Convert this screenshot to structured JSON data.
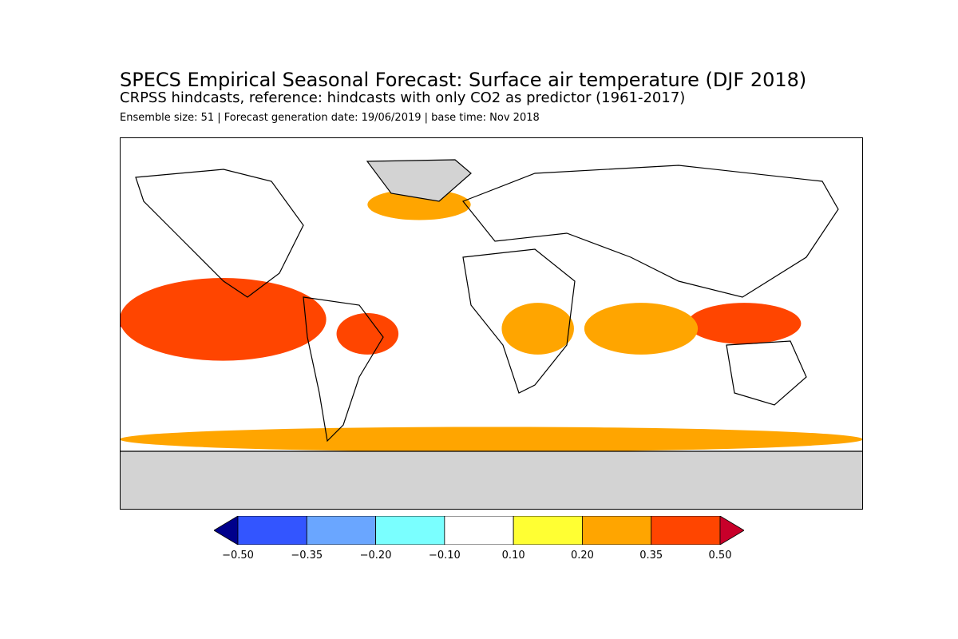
{
  "header": {
    "title": "SPECS Empirical Seasonal Forecast: Surface air temperature (DJF 2018)",
    "subtitle": "CRPSS hindcasts, reference: hindcasts with only CO2 as predictor (1961-2017)",
    "meta": "Ensemble size: 51 | Forecast generation date: 19/06/2019 | base time: Nov 2018"
  },
  "colors": {
    "land_mask": "#d3d3d3",
    "ocean_default": "#ffffff",
    "coastline": "#000000",
    "frame": "#000000"
  },
  "map": {
    "projection": "global-latlon",
    "lon_range": [
      -180,
      180
    ],
    "lat_range": [
      -90,
      90
    ],
    "masked_region": "polar land (Greenland interior, Antarctica)",
    "skill_regions": [
      {
        "name": "equatorial-pacific",
        "lon": [
          -180,
          -90
        ],
        "lat": [
          -10,
          10
        ],
        "class": 8
      },
      {
        "name": "tropical-pacific-band",
        "lon": [
          -180,
          -80
        ],
        "lat": [
          -18,
          22
        ],
        "class": 7
      },
      {
        "name": "north-atlantic",
        "lon": [
          -60,
          -10
        ],
        "lat": [
          50,
          65
        ],
        "class": 6
      },
      {
        "name": "maritime-continent",
        "lon": [
          95,
          150
        ],
        "lat": [
          -10,
          10
        ],
        "class": 7
      },
      {
        "name": "indian-ocean",
        "lon": [
          45,
          100
        ],
        "lat": [
          -15,
          10
        ],
        "class": 6
      },
      {
        "name": "amazon",
        "lon": [
          -75,
          -45
        ],
        "lat": [
          -15,
          5
        ],
        "class": 7
      },
      {
        "name": "southern-ocean-band",
        "lon": [
          -180,
          180
        ],
        "lat": [
          -62,
          -50
        ],
        "class": 6
      },
      {
        "name": "west-central-africa",
        "lon": [
          5,
          40
        ],
        "lat": [
          -15,
          10
        ],
        "class": 6
      }
    ]
  },
  "legend": {
    "type": "colorbar",
    "extend": "both",
    "bins": [
      {
        "from": null,
        "to": -0.5,
        "color": "#00008b"
      },
      {
        "from": -0.5,
        "to": -0.35,
        "color": "#3355ff"
      },
      {
        "from": -0.35,
        "to": -0.2,
        "color": "#6aa6ff"
      },
      {
        "from": -0.2,
        "to": -0.1,
        "color": "#7affff"
      },
      {
        "from": -0.1,
        "to": 0.1,
        "color": "#ffffff"
      },
      {
        "from": 0.1,
        "to": 0.2,
        "color": "#ffff33"
      },
      {
        "from": 0.2,
        "to": 0.35,
        "color": "#ffa500"
      },
      {
        "from": 0.35,
        "to": 0.5,
        "color": "#ff4500"
      },
      {
        "from": 0.5,
        "to": null,
        "color": "#c8002a"
      }
    ],
    "tick_labels": [
      "−0.50",
      "−0.35",
      "−0.20",
      "−0.10",
      "0.10",
      "0.20",
      "0.35",
      "0.50"
    ]
  }
}
